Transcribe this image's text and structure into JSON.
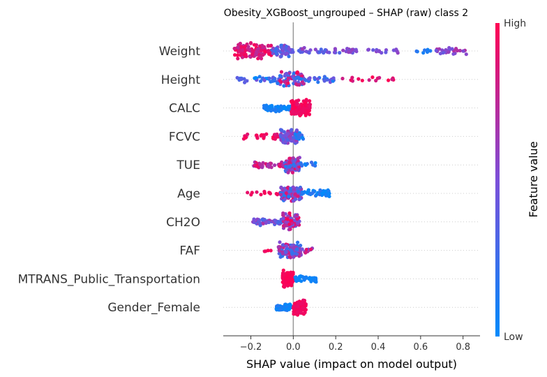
{
  "chart_data": {
    "type": "scatter",
    "subtype": "shap-beeswarm",
    "title": "Obesity_XGBoost_ungrouped – SHAP (raw) class 2",
    "xlabel": "SHAP value (impact on model output)",
    "xlim": [
      -0.33,
      0.88
    ],
    "xticks": [
      {
        "value": -0.2,
        "label": "−0.2"
      },
      {
        "value": 0.0,
        "label": "0.0"
      },
      {
        "value": 0.2,
        "label": "0.2"
      },
      {
        "value": 0.4,
        "label": "0.4"
      },
      {
        "value": 0.6,
        "label": "0.6"
      },
      {
        "value": 0.8,
        "label": "0.8"
      }
    ],
    "colorbar": {
      "label": "Feature value",
      "high_label": "High",
      "low_label": "Low",
      "low_color": "#008afb",
      "mid_color": "#7b4fd9",
      "high_color": "#ff0052"
    },
    "features": [
      {
        "name": "Weight",
        "spread": [
          -0.28,
          0.82
        ],
        "clusters": [
          {
            "x": -0.28,
            "xmax": -0.1,
            "n": 120,
            "h": 0.8,
            "lo": 0.72,
            "hi": 1.0
          },
          {
            "x": -0.1,
            "xmax": -0.02,
            "n": 50,
            "h": 0.55,
            "lo": 0.2,
            "hi": 0.6
          },
          {
            "x": -0.02,
            "xmax": 0.3,
            "n": 45,
            "h": 0.3,
            "lo": 0.3,
            "hi": 0.65
          },
          {
            "x": 0.25,
            "xmax": 0.5,
            "n": 25,
            "h": 0.25,
            "lo": 0.4,
            "hi": 0.6
          },
          {
            "x": 0.58,
            "xmax": 0.66,
            "n": 8,
            "h": 0.25,
            "lo": 0.0,
            "hi": 0.2
          },
          {
            "x": 0.66,
            "xmax": 0.82,
            "n": 30,
            "h": 0.35,
            "lo": 0.4,
            "hi": 0.75
          }
        ]
      },
      {
        "name": "Height",
        "spread": [
          -0.28,
          0.48
        ],
        "clusters": [
          {
            "x": -0.28,
            "xmax": -0.08,
            "n": 30,
            "h": 0.3,
            "lo": 0.0,
            "hi": 0.5
          },
          {
            "x": -0.08,
            "xmax": 0.05,
            "n": 90,
            "h": 0.75,
            "lo": 0.1,
            "hi": 1.0
          },
          {
            "x": 0.05,
            "xmax": 0.2,
            "n": 25,
            "h": 0.3,
            "lo": 0.1,
            "hi": 0.5
          },
          {
            "x": 0.2,
            "xmax": 0.48,
            "n": 15,
            "h": 0.25,
            "lo": 0.8,
            "hi": 1.0
          }
        ]
      },
      {
        "name": "CALC",
        "spread": [
          -0.14,
          0.08
        ],
        "clusters": [
          {
            "x": -0.14,
            "xmax": -0.01,
            "n": 70,
            "h": 0.35,
            "lo": 0.0,
            "hi": 0.15
          },
          {
            "x": -0.01,
            "xmax": 0.08,
            "n": 110,
            "h": 0.8,
            "lo": 0.9,
            "hi": 1.0
          }
        ]
      },
      {
        "name": "FCVC",
        "spread": [
          -0.24,
          0.05
        ],
        "clusters": [
          {
            "x": -0.24,
            "xmax": -0.06,
            "n": 28,
            "h": 0.3,
            "lo": 0.85,
            "hi": 1.0
          },
          {
            "x": -0.06,
            "xmax": 0.02,
            "n": 90,
            "h": 0.75,
            "lo": 0.3,
            "hi": 0.7
          },
          {
            "x": 0.0,
            "xmax": 0.05,
            "n": 20,
            "h": 0.35,
            "lo": 0.0,
            "hi": 0.3
          }
        ]
      },
      {
        "name": "TUE",
        "spread": [
          -0.19,
          0.12
        ],
        "clusters": [
          {
            "x": -0.19,
            "xmax": -0.04,
            "n": 40,
            "h": 0.3,
            "lo": 0.6,
            "hi": 0.95
          },
          {
            "x": -0.04,
            "xmax": 0.03,
            "n": 90,
            "h": 0.75,
            "lo": 0.1,
            "hi": 0.9
          },
          {
            "x": 0.03,
            "xmax": 0.12,
            "n": 12,
            "h": 0.25,
            "lo": 0.0,
            "hi": 0.25
          }
        ]
      },
      {
        "name": "Age",
        "spread": [
          -0.22,
          0.17
        ],
        "clusters": [
          {
            "x": -0.22,
            "xmax": -0.06,
            "n": 15,
            "h": 0.25,
            "lo": 0.85,
            "hi": 1.0
          },
          {
            "x": -0.06,
            "xmax": 0.04,
            "n": 110,
            "h": 0.8,
            "lo": 0.1,
            "hi": 0.9
          },
          {
            "x": 0.04,
            "xmax": 0.17,
            "n": 45,
            "h": 0.35,
            "lo": 0.0,
            "hi": 0.2
          }
        ]
      },
      {
        "name": "CH2O",
        "spread": [
          -0.19,
          0.03
        ],
        "clusters": [
          {
            "x": -0.19,
            "xmax": -0.05,
            "n": 55,
            "h": 0.35,
            "lo": 0.25,
            "hi": 0.7
          },
          {
            "x": -0.05,
            "xmax": 0.03,
            "n": 90,
            "h": 0.8,
            "lo": 0.4,
            "hi": 1.0
          }
        ]
      },
      {
        "name": "FAF",
        "spread": [
          -0.18,
          0.09
        ],
        "clusters": [
          {
            "x": -0.18,
            "xmax": -0.1,
            "n": 4,
            "h": 0.2,
            "lo": 0.9,
            "hi": 1.0
          },
          {
            "x": -0.07,
            "xmax": 0.04,
            "n": 110,
            "h": 0.8,
            "lo": 0.15,
            "hi": 0.85
          },
          {
            "x": 0.04,
            "xmax": 0.09,
            "n": 12,
            "h": 0.25,
            "lo": 0.4,
            "hi": 0.9
          }
        ]
      },
      {
        "name": "MTRANS_Public_Transportation",
        "spread": [
          -0.05,
          0.11
        ],
        "clusters": [
          {
            "x": -0.05,
            "xmax": 0.0,
            "n": 90,
            "h": 0.8,
            "lo": 0.95,
            "hi": 1.0
          },
          {
            "x": 0.0,
            "xmax": 0.11,
            "n": 45,
            "h": 0.3,
            "lo": 0.0,
            "hi": 0.1
          }
        ]
      },
      {
        "name": "Gender_Female",
        "spread": [
          -0.08,
          0.06
        ],
        "clusters": [
          {
            "x": -0.08,
            "xmax": -0.01,
            "n": 60,
            "h": 0.3,
            "lo": 0.0,
            "hi": 0.15
          },
          {
            "x": 0.0,
            "xmax": 0.06,
            "n": 110,
            "h": 0.7,
            "lo": 0.9,
            "hi": 1.0
          }
        ]
      }
    ]
  }
}
